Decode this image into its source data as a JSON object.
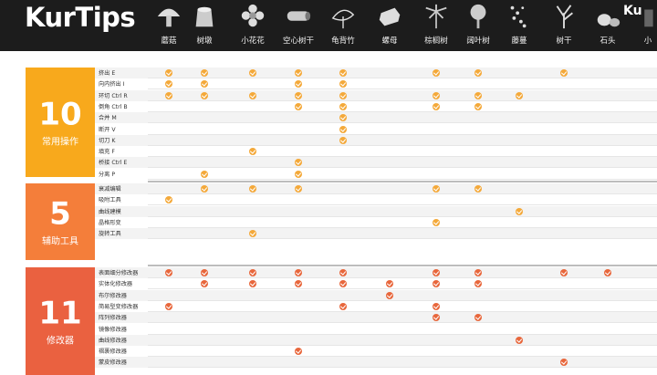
{
  "header": {
    "logo": "KurTips",
    "logo_partial": "Ku"
  },
  "columns": [
    {
      "label": "蘑菇",
      "icon": "mushroom-icon"
    },
    {
      "label": "树墩",
      "icon": "stump-icon"
    },
    {
      "label": "小花花",
      "icon": "flower-icon"
    },
    {
      "label": "空心树干",
      "icon": "hollow-log-icon"
    },
    {
      "label": "龟背竹",
      "icon": "monstera-icon"
    },
    {
      "label": "螺母",
      "icon": "nut-icon"
    },
    {
      "label": "棕榈树",
      "icon": "palm-tree-icon"
    },
    {
      "label": "阔叶树",
      "icon": "broadleaf-tree-icon"
    },
    {
      "label": "藤蔓",
      "icon": "vine-icon"
    },
    {
      "label": "树干",
      "icon": "tree-trunk-icon"
    },
    {
      "label": "石头",
      "icon": "rock-icon"
    },
    {
      "label": "小",
      "icon": "partial-icon"
    }
  ],
  "colors": {
    "header_bg": "#1c1c1c",
    "block1": "#f8a91c",
    "block2": "#f47e3a",
    "block3": "#ea6140",
    "check_orange": "#f4a93a",
    "check_red": "#e8673c"
  },
  "sections": [
    {
      "number": "10",
      "name": "常用操作",
      "rows": [
        {
          "label": "挤出 E",
          "checks": [
            0,
            1,
            2,
            3,
            4,
            6,
            7,
            9
          ]
        },
        {
          "label": "向内挤出 I",
          "checks": [
            0,
            1,
            3,
            4
          ]
        },
        {
          "label": "环切 Ctrl R",
          "checks": [
            0,
            1,
            2,
            3,
            4,
            6,
            7,
            8
          ]
        },
        {
          "label": "倒角 Ctrl B",
          "checks": [
            3,
            4,
            6,
            7
          ]
        },
        {
          "label": "合并 M",
          "checks": [
            4
          ]
        },
        {
          "label": "断开 V",
          "checks": [
            4
          ]
        },
        {
          "label": "切刀 K",
          "checks": [
            4
          ]
        },
        {
          "label": "填充 F",
          "checks": [
            2
          ]
        },
        {
          "label": "桥接 Ctrl E",
          "checks": [
            3
          ]
        },
        {
          "label": "分离 P",
          "checks": [
            1,
            3
          ]
        }
      ]
    },
    {
      "number": "5",
      "name": "辅助工具",
      "rows": [
        {
          "label": "衰减编辑",
          "checks": [
            1,
            2,
            3,
            6,
            7
          ]
        },
        {
          "label": "吸附工具",
          "checks": [
            0
          ]
        },
        {
          "label": "曲线建模",
          "checks": [
            8
          ]
        },
        {
          "label": "晶格形变",
          "checks": [
            6
          ]
        },
        {
          "label": "旋转工具",
          "checks": [
            2
          ]
        }
      ]
    },
    {
      "number": "11",
      "name": "修改器",
      "rows": [
        {
          "label": "表面细分修改器",
          "checks": [
            0,
            1,
            2,
            3,
            4,
            6,
            7,
            9,
            10
          ]
        },
        {
          "label": "实体化修改器",
          "checks": [
            1,
            2,
            3,
            4,
            5,
            6,
            7
          ]
        },
        {
          "label": "布尔修改器",
          "checks": [
            5
          ]
        },
        {
          "label": "简易型变修改器",
          "checks": [
            0,
            4,
            6
          ]
        },
        {
          "label": "阵列修改器",
          "checks": [
            6,
            7
          ]
        },
        {
          "label": "镜像修改器",
          "checks": []
        },
        {
          "label": "曲线修改器",
          "checks": [
            8
          ]
        },
        {
          "label": "褶裹修改器",
          "checks": [
            3
          ]
        },
        {
          "label": "蒙皮修改器",
          "checks": [
            9
          ]
        }
      ]
    }
  ]
}
